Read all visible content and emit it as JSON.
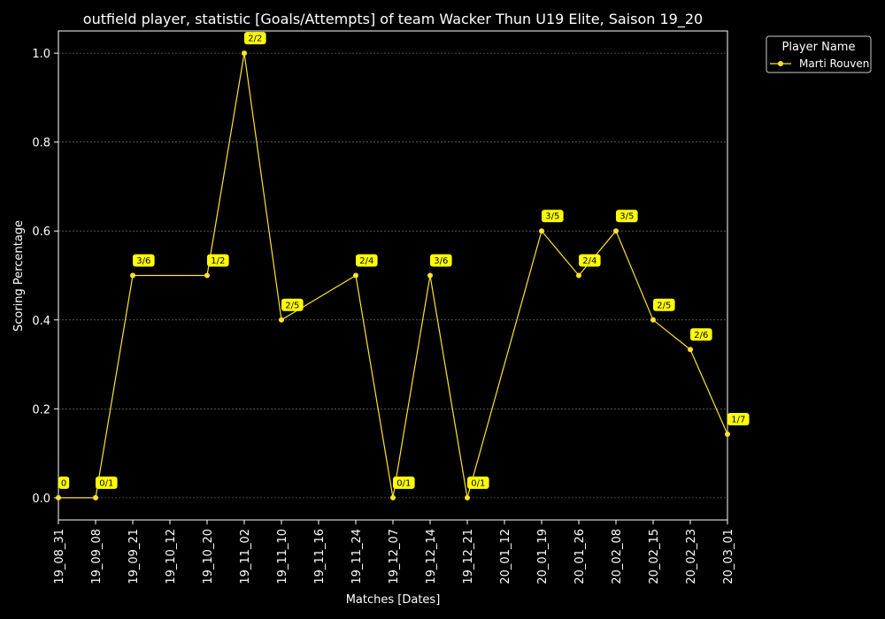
{
  "chart_data": {
    "type": "line",
    "title": "outfield player, statistic [Goals/Attempts] of team Wacker Thun U19 Elite, Saison 19_20",
    "xlabel": "Matches [Dates]",
    "ylabel": "Scoring Percentage",
    "ylim": [
      -0.05,
      1.05
    ],
    "yticks": [
      "0.0",
      "0.2",
      "0.4",
      "0.6",
      "0.8",
      "1.0"
    ],
    "grid": "horizontal dashed",
    "legend_title": "Player Name",
    "legend_position": "outside top-right",
    "categories": [
      "19_08_31",
      "19_09_08",
      "19_09_21",
      "19_10_12",
      "19_10_20",
      "19_11_02",
      "19_11_10",
      "19_11_16",
      "19_11_24",
      "19_12_07",
      "19_12_14",
      "19_12_21",
      "20_01_12",
      "20_01_19",
      "20_01_26",
      "20_02_08",
      "20_02_15",
      "20_02_23",
      "20_03_01"
    ],
    "series": [
      {
        "name": "Marti Rouven",
        "color": "#ffe22e",
        "values": [
          0.0,
          0.0,
          0.5,
          null,
          0.5,
          1.0,
          0.4,
          null,
          0.5,
          0.0,
          0.5,
          0.0,
          null,
          0.6,
          0.5,
          0.6,
          0.4,
          0.3333,
          0.1429
        ],
        "labels": [
          "0",
          "0/1",
          "3/6",
          null,
          "1/2",
          "2/2",
          "2/5",
          null,
          "2/4",
          "0/1",
          "3/6",
          "0/1",
          null,
          "3/5",
          "2/4",
          "3/5",
          "2/5",
          "2/6",
          "1/7"
        ]
      }
    ]
  },
  "colors": {
    "background": "#000000",
    "axes": "#ffffff",
    "grid": "#888888",
    "label_box": "#ffff00"
  }
}
